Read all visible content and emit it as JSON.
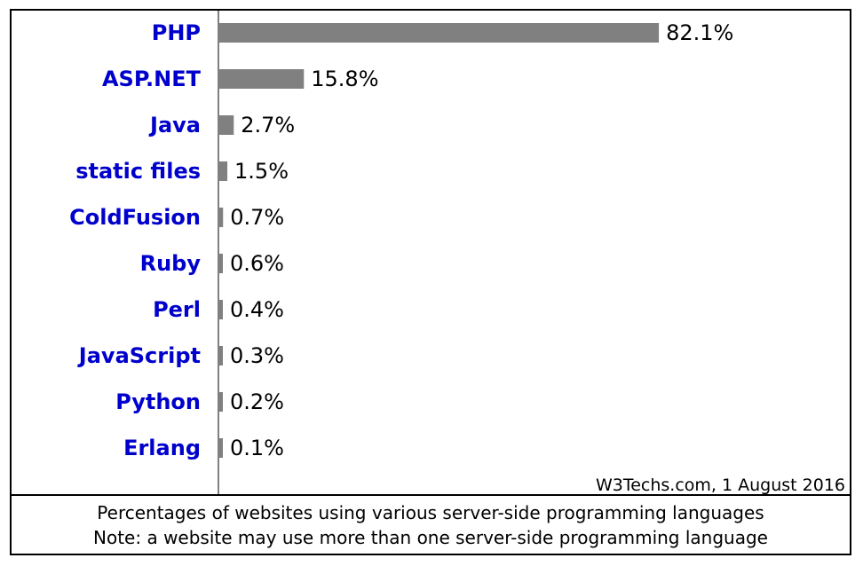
{
  "chart_data": {
    "type": "bar",
    "orientation": "horizontal",
    "categories": [
      "PHP",
      "ASP.NET",
      "Java",
      "static files",
      "ColdFusion",
      "Ruby",
      "Perl",
      "JavaScript",
      "Python",
      "Erlang"
    ],
    "values": [
      82.1,
      15.8,
      2.7,
      1.5,
      0.7,
      0.6,
      0.4,
      0.3,
      0.2,
      0.1
    ],
    "value_labels": [
      "82.1%",
      "15.8%",
      "2.7%",
      "1.5%",
      "0.7%",
      "0.6%",
      "0.4%",
      "0.3%",
      "0.2%",
      "0.1%"
    ],
    "unit": "%",
    "xlim": [
      0,
      100
    ],
    "grid": false,
    "colors": {
      "bar": "#808080",
      "category_label": "#0000cc",
      "value_label": "#000000",
      "axis": "#808080"
    }
  },
  "source_note": "W3Techs.com, 1 August 2016",
  "caption": {
    "line1": "Percentages of websites using various server-side programming languages",
    "line2": "Note: a website may use more than one server-side programming language"
  }
}
